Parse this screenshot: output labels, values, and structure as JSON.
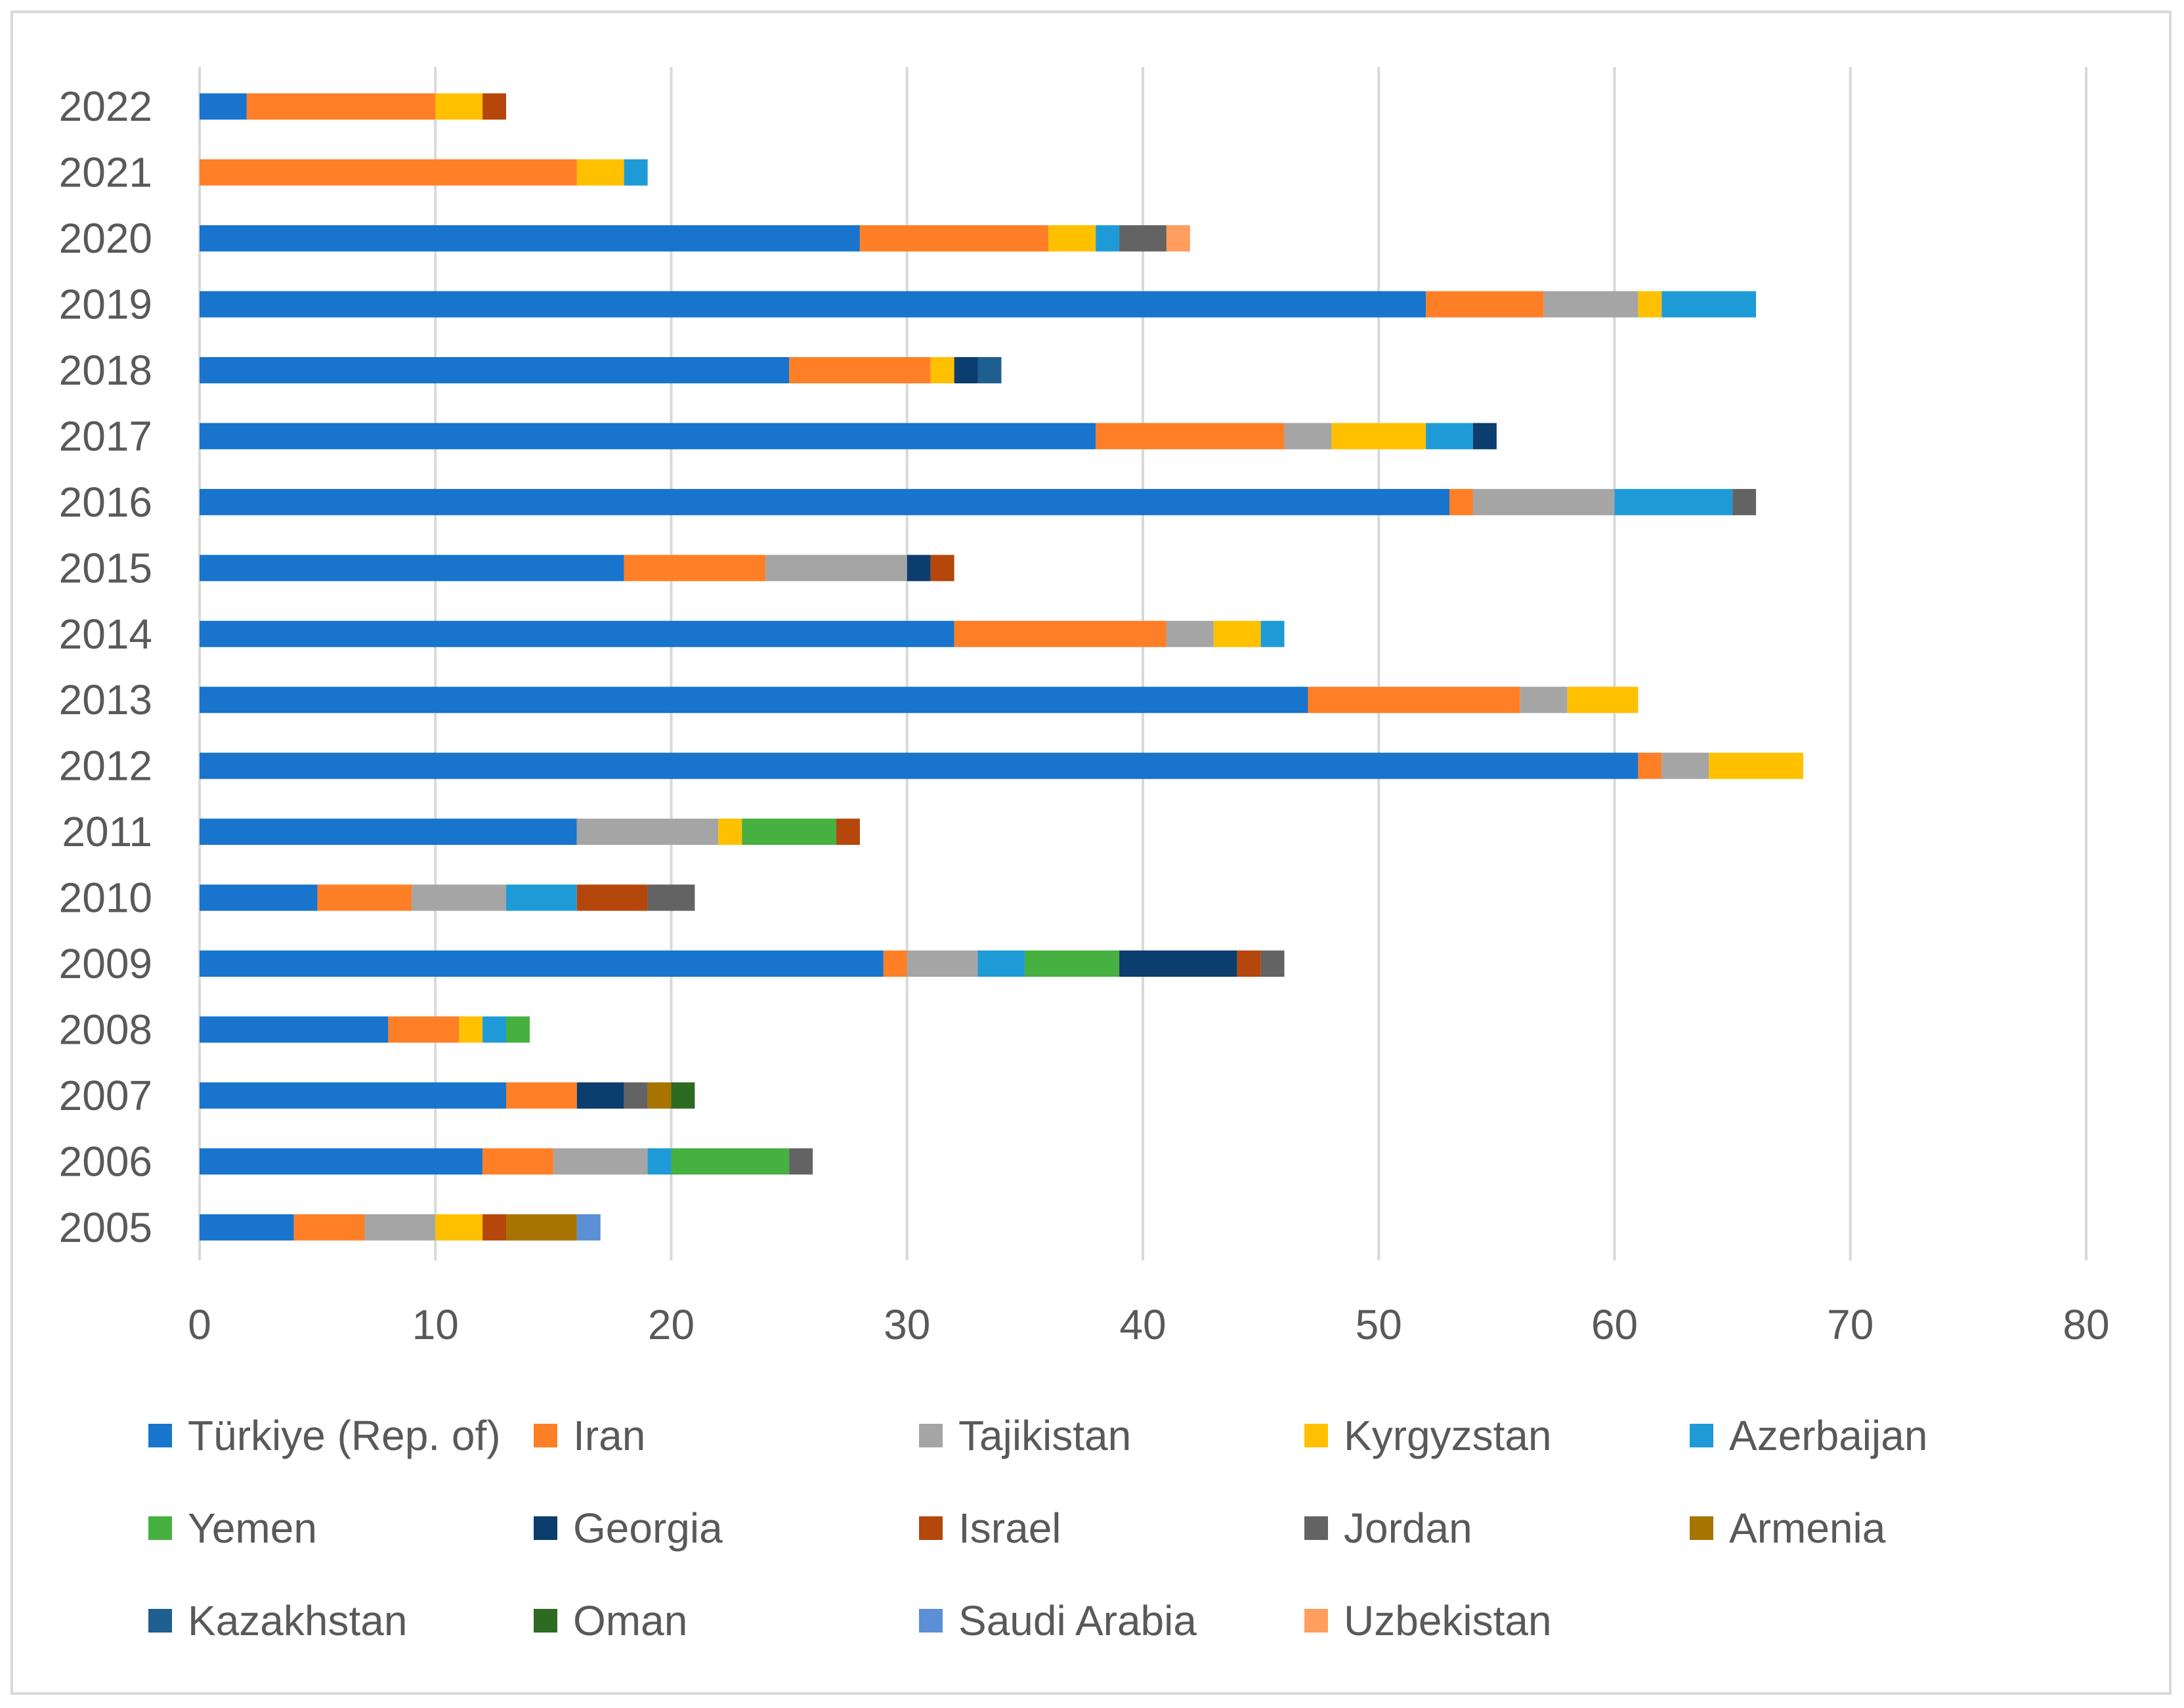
{
  "chart_data": {
    "type": "bar",
    "orientation": "horizontal",
    "stacked": true,
    "title": "",
    "xlabel": "",
    "ylabel": "",
    "xlim": [
      0,
      80
    ],
    "x_ticks": [
      0,
      10,
      20,
      30,
      40,
      50,
      60,
      70,
      80
    ],
    "grid": "vertical",
    "legend_position": "bottom",
    "categories": [
      "2005",
      "2006",
      "2007",
      "2008",
      "2009",
      "2010",
      "2011",
      "2012",
      "2013",
      "2014",
      "2015",
      "2016",
      "2017",
      "2018",
      "2019",
      "2020",
      "2021",
      "2022"
    ],
    "series": [
      {
        "name": "Türkiye (Rep. of)",
        "color": "#1874CD",
        "values": [
          4,
          12,
          13,
          8,
          29,
          5,
          16,
          61,
          47,
          32,
          18,
          53,
          38,
          25,
          52,
          28,
          0,
          2
        ]
      },
      {
        "name": "Iran",
        "color": "#FF7F27",
        "values": [
          3,
          3,
          3,
          3,
          1,
          4,
          0,
          1,
          9,
          9,
          6,
          1,
          8,
          6,
          5,
          8,
          16,
          8
        ]
      },
      {
        "name": "Tajikistan",
        "color": "#A5A5A5",
        "values": [
          3,
          4,
          0,
          0,
          3,
          4,
          6,
          2,
          2,
          2,
          6,
          6,
          2,
          0,
          4,
          0,
          0,
          0
        ]
      },
      {
        "name": "Kyrgyzstan",
        "color": "#FFC000",
        "values": [
          2,
          0,
          0,
          1,
          0,
          0,
          1,
          4,
          3,
          2,
          0,
          0,
          4,
          1,
          1,
          2,
          2,
          2
        ]
      },
      {
        "name": "Azerbaijan",
        "color": "#1E9BD7",
        "values": [
          0,
          1,
          0,
          1,
          2,
          3,
          0,
          0,
          0,
          1,
          0,
          5,
          2,
          0,
          4,
          1,
          1,
          0
        ]
      },
      {
        "name": "Yemen",
        "color": "#46B040",
        "values": [
          0,
          5,
          0,
          1,
          4,
          0,
          4,
          0,
          0,
          0,
          0,
          0,
          0,
          0,
          0,
          0,
          0,
          0
        ]
      },
      {
        "name": "Georgia",
        "color": "#0B3D6E",
        "values": [
          0,
          0,
          2,
          0,
          5,
          0,
          0,
          0,
          0,
          0,
          1,
          0,
          1,
          1,
          0,
          0,
          0,
          0
        ]
      },
      {
        "name": "Israel",
        "color": "#B5470C",
        "values": [
          1,
          0,
          0,
          0,
          1,
          3,
          1,
          0,
          0,
          0,
          1,
          0,
          0,
          0,
          0,
          0,
          0,
          1
        ]
      },
      {
        "name": "Jordan",
        "color": "#636363",
        "values": [
          0,
          1,
          1,
          0,
          1,
          2,
          0,
          0,
          0,
          0,
          0,
          1,
          0,
          0,
          0,
          2,
          0,
          0
        ]
      },
      {
        "name": "Armenia",
        "color": "#A87400",
        "values": [
          3,
          0,
          1,
          0,
          0,
          0,
          0,
          0,
          0,
          0,
          0,
          0,
          0,
          0,
          0,
          0,
          0,
          0
        ]
      },
      {
        "name": "Kazakhstan",
        "color": "#1F5F8F",
        "values": [
          0,
          0,
          0,
          0,
          0,
          0,
          0,
          0,
          0,
          0,
          0,
          0,
          0,
          1,
          0,
          0,
          0,
          0
        ]
      },
      {
        "name": "Oman",
        "color": "#2E6B22",
        "values": [
          0,
          0,
          1,
          0,
          0,
          0,
          0,
          0,
          0,
          0,
          0,
          0,
          0,
          0,
          0,
          0,
          0,
          0
        ]
      },
      {
        "name": "Saudi Arabia",
        "color": "#5B8FD6",
        "values": [
          1,
          0,
          0,
          0,
          0,
          0,
          0,
          0,
          0,
          0,
          0,
          0,
          0,
          0,
          0,
          0,
          0,
          0
        ]
      },
      {
        "name": "Uzbekistan",
        "color": "#FF9E5E",
        "values": [
          0,
          0,
          0,
          0,
          0,
          0,
          0,
          0,
          0,
          0,
          0,
          0,
          0,
          0,
          0,
          1,
          0,
          0
        ]
      }
    ]
  }
}
